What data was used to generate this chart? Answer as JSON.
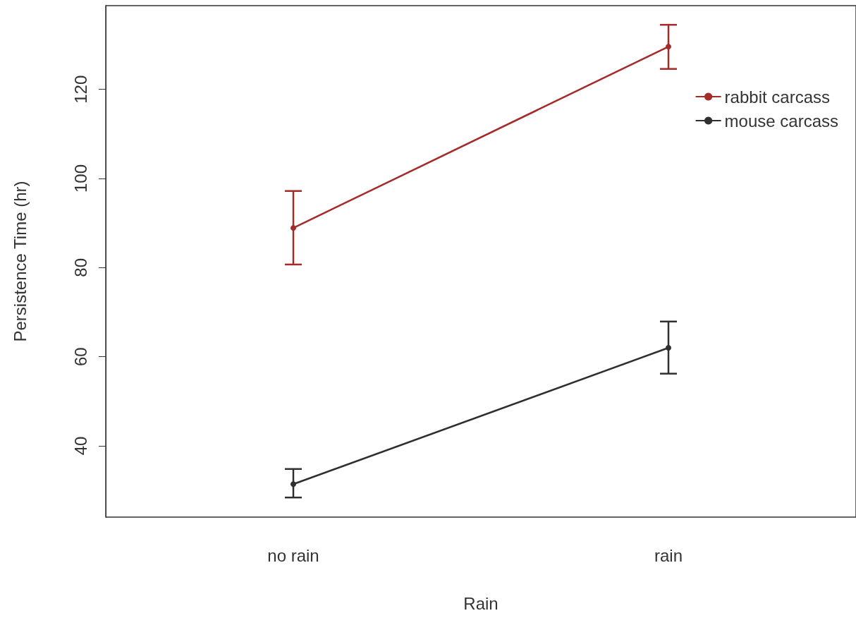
{
  "chart_data": {
    "type": "line",
    "xlabel": "Rain",
    "ylabel": "Persistence Time (hr)",
    "categories": [
      "no rain",
      "rain"
    ],
    "series": [
      {
        "name": "rabbit carcass",
        "color": "#a52a2a",
        "values": [
          88.9,
          129.6
        ],
        "errors": [
          [
            80.7,
            97.2
          ],
          [
            124.6,
            134.5
          ]
        ]
      },
      {
        "name": "mouse carcass",
        "color": "#2f2f2f",
        "values": [
          31.4,
          62.0
        ],
        "errors": [
          [
            28.4,
            34.8
          ],
          [
            56.2,
            67.9
          ]
        ]
      }
    ],
    "ylim": [
      24,
      138.8
    ],
    "yticks": [
      40,
      60,
      80,
      100,
      120
    ],
    "grid": false,
    "legend": "top right",
    "marker": "circle",
    "line_style": "solid"
  }
}
